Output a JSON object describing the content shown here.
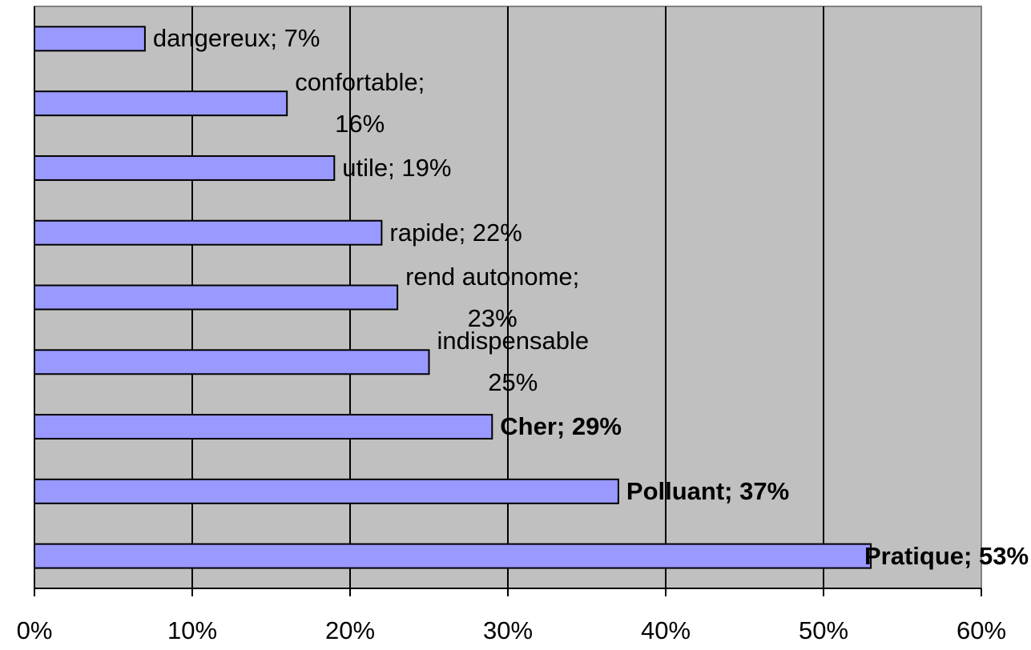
{
  "chart_data": {
    "type": "barh",
    "values": [
      7,
      16,
      19,
      22,
      23,
      25,
      29,
      37,
      53
    ],
    "value_labels": [
      "dangereux; 7%",
      "confortable;\n16%",
      "utile; 19%",
      "rapide; 22%",
      "rend autonome;\n23%",
      "indispensable\n25%",
      "Cher; 29%",
      "Polluant; 37%",
      "Pratique; 53%"
    ],
    "value_label_bold": [
      false,
      false,
      false,
      false,
      false,
      false,
      true,
      true,
      true
    ],
    "color": "#9999ff",
    "xlim": [
      0,
      60
    ],
    "xticks": [
      {
        "value": 0,
        "label": "0%"
      },
      {
        "value": 10,
        "label": "10%"
      },
      {
        "value": 20,
        "label": "20%"
      },
      {
        "value": 30,
        "label": "30%"
      },
      {
        "value": 40,
        "label": "40%"
      },
      {
        "value": 50,
        "label": "50%"
      },
      {
        "value": 60,
        "label": "60%"
      }
    ],
    "grid": true
  }
}
